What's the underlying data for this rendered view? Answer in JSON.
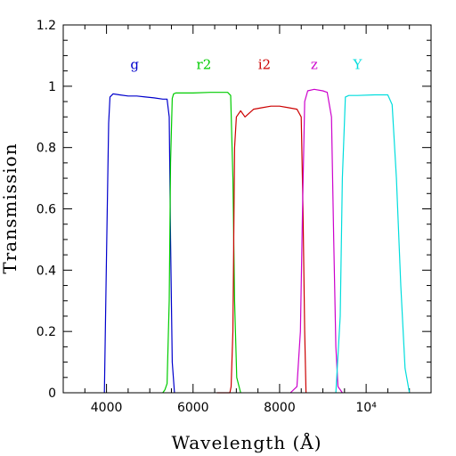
{
  "chart_data": {
    "type": "line",
    "xlabel": "Wavelength (Å)",
    "ylabel": "Transmission",
    "xlim": [
      3000,
      11500
    ],
    "ylim": [
      0,
      1.2
    ],
    "x_tick_labels": [
      {
        "value": 4000,
        "label": "4000"
      },
      {
        "value": 6000,
        "label": "6000"
      },
      {
        "value": 8000,
        "label": "8000"
      },
      {
        "value": 10000,
        "label": "10⁴"
      }
    ],
    "y_tick_labels": [
      {
        "value": 0,
        "label": "0"
      },
      {
        "value": 0.2,
        "label": "0.2"
      },
      {
        "value": 0.4,
        "label": "0.4"
      },
      {
        "value": 0.6,
        "label": "0.6"
      },
      {
        "value": 0.8,
        "label": "0.8"
      },
      {
        "value": 1.0,
        "label": "1"
      },
      {
        "value": 1.2,
        "label": "1.2"
      }
    ],
    "grid": false,
    "legend_placement": "top, above each curve",
    "series": [
      {
        "name": "g",
        "color": "#0000cc",
        "label_x": 4650,
        "x": [
          3950,
          4000,
          4050,
          4080,
          4150,
          4300,
          4500,
          4700,
          4900,
          5100,
          5300,
          5400,
          5450,
          5480,
          5520,
          5570
        ],
        "y": [
          0.0,
          0.45,
          0.88,
          0.965,
          0.975,
          0.972,
          0.968,
          0.968,
          0.965,
          0.962,
          0.958,
          0.958,
          0.9,
          0.5,
          0.1,
          0.0
        ]
      },
      {
        "name": "r2",
        "color": "#00cc00",
        "label_x": 6250,
        "x": [
          5300,
          5350,
          5400,
          5450,
          5480,
          5520,
          5550,
          5600,
          6000,
          6400,
          6800,
          6870,
          6920,
          6960,
          7010,
          7100
        ],
        "y": [
          0.0,
          0.01,
          0.03,
          0.3,
          0.75,
          0.96,
          0.975,
          0.978,
          0.978,
          0.98,
          0.98,
          0.97,
          0.7,
          0.3,
          0.05,
          0.0
        ]
      },
      {
        "name": "i2",
        "color": "#cc0000",
        "label_x": 7650,
        "x": [
          6550,
          6850,
          6880,
          6920,
          6960,
          7000,
          7100,
          7200,
          7400,
          7600,
          7800,
          8000,
          8200,
          8400,
          8500,
          8540,
          8580,
          8610
        ],
        "y": [
          0.0,
          0.0,
          0.02,
          0.2,
          0.8,
          0.9,
          0.92,
          0.9,
          0.925,
          0.93,
          0.935,
          0.935,
          0.93,
          0.925,
          0.9,
          0.6,
          0.2,
          0.0
        ]
      },
      {
        "name": "z",
        "color": "#cc00cc",
        "label_x": 8800,
        "x": [
          8250,
          8400,
          8480,
          8530,
          8580,
          8650,
          8800,
          9000,
          9100,
          9200,
          9250,
          9300,
          9350,
          9450
        ],
        "y": [
          0.0,
          0.02,
          0.2,
          0.6,
          0.95,
          0.985,
          0.99,
          0.985,
          0.98,
          0.9,
          0.5,
          0.15,
          0.02,
          0.0
        ]
      },
      {
        "name": "Y",
        "color": "#00dddd",
        "label_x": 9800,
        "x": [
          9300,
          9400,
          9450,
          9520,
          9600,
          9800,
          10200,
          10500,
          10600,
          10700,
          10800,
          10900,
          11000
        ],
        "y": [
          0.0,
          0.25,
          0.7,
          0.965,
          0.97,
          0.97,
          0.972,
          0.972,
          0.94,
          0.7,
          0.35,
          0.08,
          0.0
        ]
      }
    ]
  }
}
